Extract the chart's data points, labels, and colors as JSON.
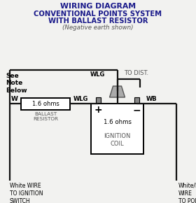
{
  "title_line1": "WIRING DIAGRAM",
  "title_line2": "CONVENTIONAL POINTS SYSTEM",
  "title_line3": "WITH BALLAST RESISTOR",
  "subtitle": "(Negative earth shown)",
  "bg_color": "#f2f2f0",
  "title_color": "#1a1a8a",
  "wire_color": "#111111",
  "label_ballast": "BALLAST\nRESISTOR",
  "label_resistor": "1.6 ohms",
  "label_coil_ohms": "1.6 ohms",
  "label_coil_name": "IGNITION\nCOIL",
  "label_to_dist": "TO DIST.",
  "label_WLG1": "WLG",
  "label_WLG2": "WLG",
  "label_WB": "WB",
  "label_W": "W",
  "label_see_note": "See\nNote\nBelow",
  "label_white_wire": "White WIRE\nTO IGNITION\nSWITCH",
  "label_wb_wire": "White/Black\nWIRE\nTO POINTS",
  "coil_plus": "+",
  "coil_minus": "−"
}
